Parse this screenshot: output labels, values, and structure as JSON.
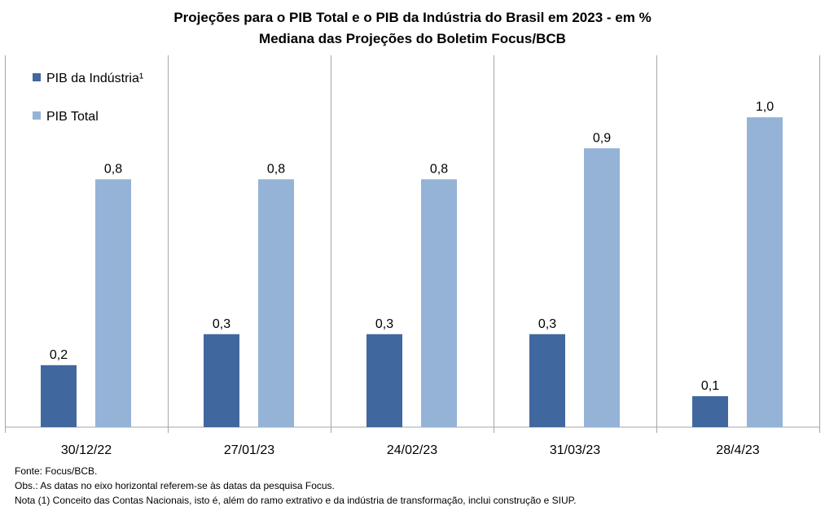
{
  "title": "Projeções para o PIB Total e o PIB da Indústria do Brasil em 2023 - em %",
  "subtitle": "Mediana das Projeções do Boletim Focus/BCB",
  "colors": {
    "industria": "#41689E",
    "total": "#95B3D7",
    "grid": "#A6A6A6"
  },
  "chart_data": {
    "type": "bar",
    "title": "Projeções para o PIB Total e o PIB da Indústria do Brasil em 2023 - em %",
    "subtitle": "Mediana das Projeções do Boletim Focus/BCB",
    "categories": [
      "30/12/22",
      "27/01/23",
      "24/02/23",
      "31/03/23",
      "28/4/23"
    ],
    "series": [
      {
        "name": "PIB da Indústria¹",
        "values": [
          0.2,
          0.3,
          0.3,
          0.3,
          0.1
        ],
        "labels": [
          "0,2",
          "0,3",
          "0,3",
          "0,3",
          "0,1"
        ]
      },
      {
        "name": "PIB Total",
        "values": [
          0.8,
          0.8,
          0.8,
          0.9,
          1.0
        ],
        "labels": [
          "0,8",
          "0,8",
          "0,8",
          "0,9",
          "1,0"
        ]
      }
    ],
    "ylim": [
      0,
      1.2
    ],
    "legend": "top-left",
    "grid": false
  },
  "notes": {
    "source": "Fonte: Focus/BCB.",
    "obs": "Obs.: As datas no eixo horizontal referem-se às datas da pesquisa Focus.",
    "nota": "Nota (1) Conceito das Contas Nacionais, isto é, além do ramo extrativo e da indústria de transformação, inclui construção e SIUP."
  }
}
